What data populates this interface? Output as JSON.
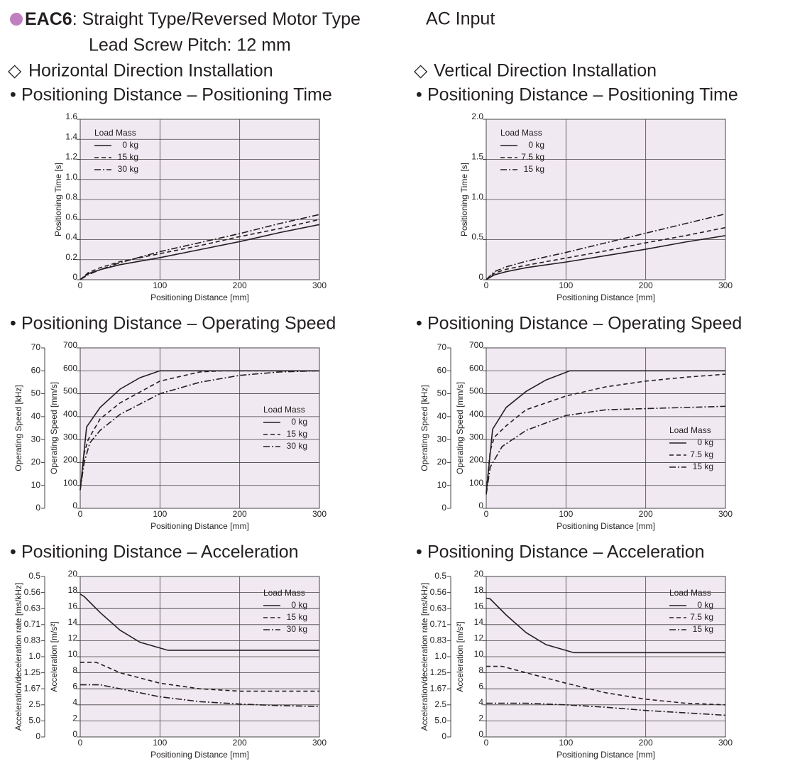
{
  "header": {
    "model": "EAC6",
    "title": ": Straight Type/Reversed Motor Type",
    "input": "AC Input",
    "subtitle": "Lead Screw Pitch: 12 mm"
  },
  "columns": [
    "Horizontal Direction Installation",
    "Vertical Direction Installation"
  ],
  "chart_data": [
    {
      "type": "line",
      "title": "Positioning Distance – Positioning Time",
      "xlabel": "Positioning Distance [mm]",
      "ylabel": "Positioning Time [s]",
      "xlim": [
        0,
        300
      ],
      "xticks": [
        0,
        100,
        200,
        300
      ],
      "ylim": [
        0,
        1.6
      ],
      "yticks": [
        0,
        0.2,
        0.4,
        0.6,
        0.8,
        {
          "value": 1.0,
          "label": "1.0"
        },
        1.2,
        1.4,
        1.6
      ],
      "grid": true,
      "legend": "upper left",
      "legend_title": "Load Mass",
      "series": [
        {
          "name": "0 kg",
          "color": "#231f20",
          "dash": "solid",
          "x": [
            0,
            10,
            25,
            50,
            100,
            150,
            200,
            250,
            300
          ],
          "values": [
            0,
            0.06,
            0.1,
            0.15,
            0.22,
            0.3,
            0.38,
            0.47,
            0.55
          ]
        },
        {
          "name": "15 kg",
          "color": "#231f20",
          "dash": "dashed",
          "x": [
            0,
            10,
            25,
            50,
            100,
            150,
            200,
            250,
            300
          ],
          "values": [
            0,
            0.07,
            0.12,
            0.18,
            0.26,
            0.34,
            0.43,
            0.51,
            0.6
          ]
        },
        {
          "name": "30 kg",
          "color": "#231f20",
          "dash": "dashdot",
          "x": [
            0,
            10,
            25,
            50,
            100,
            150,
            200,
            250,
            300
          ],
          "values": [
            0,
            0.05,
            0.1,
            0.17,
            0.28,
            0.37,
            0.46,
            0.56,
            0.65
          ]
        }
      ]
    },
    {
      "type": "line",
      "title": "Positioning Distance – Positioning Time",
      "xlabel": "Positioning Distance [mm]",
      "ylabel": "Positioning Time [s]",
      "xlim": [
        0,
        300
      ],
      "xticks": [
        0,
        100,
        200,
        300
      ],
      "ylim": [
        0,
        2.0
      ],
      "yticks": [
        0,
        0.5,
        {
          "value": 1.0,
          "label": "1.0"
        },
        1.5,
        {
          "value": 2.0,
          "label": "2.0"
        }
      ],
      "grid": true,
      "legend": "upper left",
      "legend_title": "Load Mass",
      "series": [
        {
          "name": "0 kg",
          "color": "#231f20",
          "dash": "solid",
          "x": [
            0,
            10,
            25,
            50,
            100,
            150,
            200,
            250,
            300
          ],
          "values": [
            0,
            0.06,
            0.1,
            0.15,
            0.22,
            0.3,
            0.38,
            0.47,
            0.55
          ]
        },
        {
          "name": "7.5 kg",
          "color": "#231f20",
          "dash": "dashed",
          "x": [
            0,
            10,
            25,
            50,
            100,
            150,
            200,
            250,
            300
          ],
          "values": [
            0,
            0.08,
            0.13,
            0.18,
            0.27,
            0.36,
            0.46,
            0.55,
            0.65
          ]
        },
        {
          "name": "15 kg",
          "color": "#231f20",
          "dash": "dashdot",
          "x": [
            0,
            10,
            25,
            50,
            100,
            150,
            200,
            250,
            300
          ],
          "values": [
            0,
            0.1,
            0.16,
            0.23,
            0.34,
            0.46,
            0.58,
            0.7,
            0.82
          ]
        }
      ]
    },
    {
      "type": "line",
      "title": "Positioning Distance – Operating Speed",
      "xlabel": "Positioning Distance [mm]",
      "ylabel": "Operating Speed [mm/s]",
      "y2label": "Operating Speed [kHz]",
      "xlim": [
        0,
        300
      ],
      "xticks": [
        0,
        100,
        200,
        300
      ],
      "ylim": [
        0,
        700
      ],
      "yticks": [
        0,
        100,
        200,
        300,
        400,
        500,
        600,
        700
      ],
      "y2lim": [
        0,
        70
      ],
      "y2ticks": [
        0,
        10,
        20,
        30,
        40,
        50,
        60,
        70
      ],
      "grid": true,
      "legend": "center right",
      "legend_title": "Load Mass",
      "series": [
        {
          "name": "0 kg",
          "color": "#231f20",
          "dash": "solid",
          "x": [
            0,
            8,
            25,
            50,
            75,
            100,
            300
          ],
          "values": [
            80,
            355,
            440,
            520,
            570,
            600,
            600
          ]
        },
        {
          "name": "15 kg",
          "color": "#231f20",
          "dash": "dashed",
          "x": [
            0,
            5,
            10,
            25,
            50,
            100,
            150,
            180,
            300
          ],
          "values": [
            80,
            240,
            300,
            390,
            460,
            555,
            595,
            600,
            600
          ]
        },
        {
          "name": "30 kg",
          "color": "#231f20",
          "dash": "dashdot",
          "x": [
            0,
            5,
            12,
            25,
            50,
            100,
            150,
            200,
            250,
            300
          ],
          "values": [
            80,
            200,
            285,
            340,
            410,
            500,
            550,
            580,
            595,
            600
          ]
        }
      ]
    },
    {
      "type": "line",
      "title": "Positioning Distance – Operating Speed",
      "xlabel": "Positioning Distance [mm]",
      "ylabel": "Operating Speed [mm/s]",
      "y2label": "Operating Speed [kHz]",
      "xlim": [
        0,
        300
      ],
      "xticks": [
        0,
        100,
        200,
        300
      ],
      "ylim": [
        0,
        700
      ],
      "yticks": [
        0,
        100,
        200,
        300,
        400,
        500,
        600,
        700
      ],
      "y2lim": [
        0,
        70
      ],
      "y2ticks": [
        0,
        10,
        20,
        30,
        40,
        50,
        60,
        70
      ],
      "grid": true,
      "legend": "lower right",
      "legend_title": "Load Mass",
      "series": [
        {
          "name": "0 kg",
          "color": "#231f20",
          "dash": "solid",
          "x": [
            0,
            8,
            25,
            50,
            75,
            105,
            300
          ],
          "values": [
            65,
            345,
            440,
            510,
            560,
            600,
            600
          ]
        },
        {
          "name": "7.5 kg",
          "color": "#231f20",
          "dash": "dashed",
          "x": [
            0,
            5,
            10,
            25,
            50,
            100,
            150,
            200,
            250,
            300
          ],
          "values": [
            70,
            250,
            310,
            360,
            430,
            490,
            530,
            555,
            572,
            585
          ]
        },
        {
          "name": "15 kg",
          "color": "#231f20",
          "dash": "dashdot",
          "x": [
            0,
            5,
            20,
            50,
            100,
            150,
            200,
            300
          ],
          "values": [
            60,
            180,
            270,
            340,
            405,
            430,
            435,
            445
          ]
        }
      ]
    },
    {
      "type": "line",
      "title": "Positioning Distance – Acceleration",
      "xlabel": "Positioning Distance [mm]",
      "ylabel": "Acceleration [m/s²]",
      "y2label": "Acceleration/deceleration rate [ms/kHz]",
      "xlim": [
        0,
        300
      ],
      "xticks": [
        0,
        100,
        200,
        300
      ],
      "ylim": [
        0,
        20
      ],
      "yticks": [
        0,
        2,
        4,
        6,
        8,
        10,
        12,
        14,
        16,
        18,
        20
      ],
      "y2lim": [
        0,
        20
      ],
      "y2ticks": [
        0,
        {
          "value": 2,
          "label": "5.0"
        },
        {
          "value": 4,
          "label": "2.5"
        },
        {
          "value": 6,
          "label": "1.67"
        },
        {
          "value": 8,
          "label": "1.25"
        },
        {
          "value": 10,
          "label": "1.0"
        },
        {
          "value": 12,
          "label": "0.83"
        },
        {
          "value": 14,
          "label": "0.71"
        },
        {
          "value": 16,
          "label": "0.63"
        },
        {
          "value": 18,
          "label": "0.56"
        },
        {
          "value": 20,
          "label": "0.5"
        }
      ],
      "grid": true,
      "legend": "upper right",
      "legend_title": "Load Mass",
      "series": [
        {
          "name": "0 kg",
          "color": "#231f20",
          "dash": "solid",
          "x": [
            0,
            5,
            25,
            50,
            75,
            110,
            300
          ],
          "values": [
            17.8,
            17.5,
            15.5,
            13.3,
            11.8,
            10.8,
            10.8
          ]
        },
        {
          "name": "15 kg",
          "color": "#231f20",
          "dash": "dashed",
          "x": [
            0,
            20,
            50,
            100,
            150,
            200,
            300
          ],
          "values": [
            9.3,
            9.3,
            8.0,
            6.7,
            6.0,
            5.7,
            5.7
          ]
        },
        {
          "name": "30 kg",
          "color": "#231f20",
          "dash": "dashdot",
          "x": [
            0,
            25,
            50,
            100,
            150,
            200,
            250,
            300
          ],
          "values": [
            6.5,
            6.5,
            6.0,
            5.0,
            4.4,
            4.1,
            3.9,
            3.8
          ]
        }
      ]
    },
    {
      "type": "line",
      "title": "Positioning Distance – Acceleration",
      "xlabel": "Positioning Distance [mm]",
      "ylabel": "Acceleration [m/s²]",
      "y2label": "Acceleration/deceleration rate [ms/kHz]",
      "xlim": [
        0,
        300
      ],
      "xticks": [
        0,
        100,
        200,
        300
      ],
      "ylim": [
        0,
        20
      ],
      "yticks": [
        0,
        2,
        4,
        6,
        8,
        10,
        12,
        14,
        16,
        18,
        20
      ],
      "y2lim": [
        0,
        20
      ],
      "y2ticks": [
        0,
        {
          "value": 2,
          "label": "5.0"
        },
        {
          "value": 4,
          "label": "2.5"
        },
        {
          "value": 6,
          "label": "1.67"
        },
        {
          "value": 8,
          "label": "1.25"
        },
        {
          "value": 10,
          "label": "1.0"
        },
        {
          "value": 12,
          "label": "0.83"
        },
        {
          "value": 14,
          "label": "0.71"
        },
        {
          "value": 16,
          "label": "0.63"
        },
        {
          "value": 18,
          "label": "0.56"
        },
        {
          "value": 20,
          "label": "0.5"
        }
      ],
      "grid": true,
      "legend": "upper right",
      "legend_title": "Load Mass",
      "series": [
        {
          "name": "0 kg",
          "color": "#231f20",
          "dash": "solid",
          "x": [
            0,
            5,
            25,
            50,
            75,
            110,
            300
          ],
          "values": [
            17.3,
            17.2,
            15.2,
            13.0,
            11.5,
            10.5,
            10.5
          ]
        },
        {
          "name": "7.5 kg",
          "color": "#231f20",
          "dash": "dashed",
          "x": [
            0,
            20,
            50,
            100,
            150,
            200,
            250,
            300
          ],
          "values": [
            8.8,
            8.8,
            8.0,
            6.7,
            5.5,
            4.7,
            4.2,
            4.0
          ]
        },
        {
          "name": "15 kg",
          "color": "#231f20",
          "dash": "dashdot",
          "x": [
            0,
            50,
            100,
            150,
            200,
            250,
            300
          ],
          "values": [
            4.2,
            4.2,
            4.0,
            3.7,
            3.3,
            3.0,
            2.7
          ]
        }
      ]
    }
  ]
}
